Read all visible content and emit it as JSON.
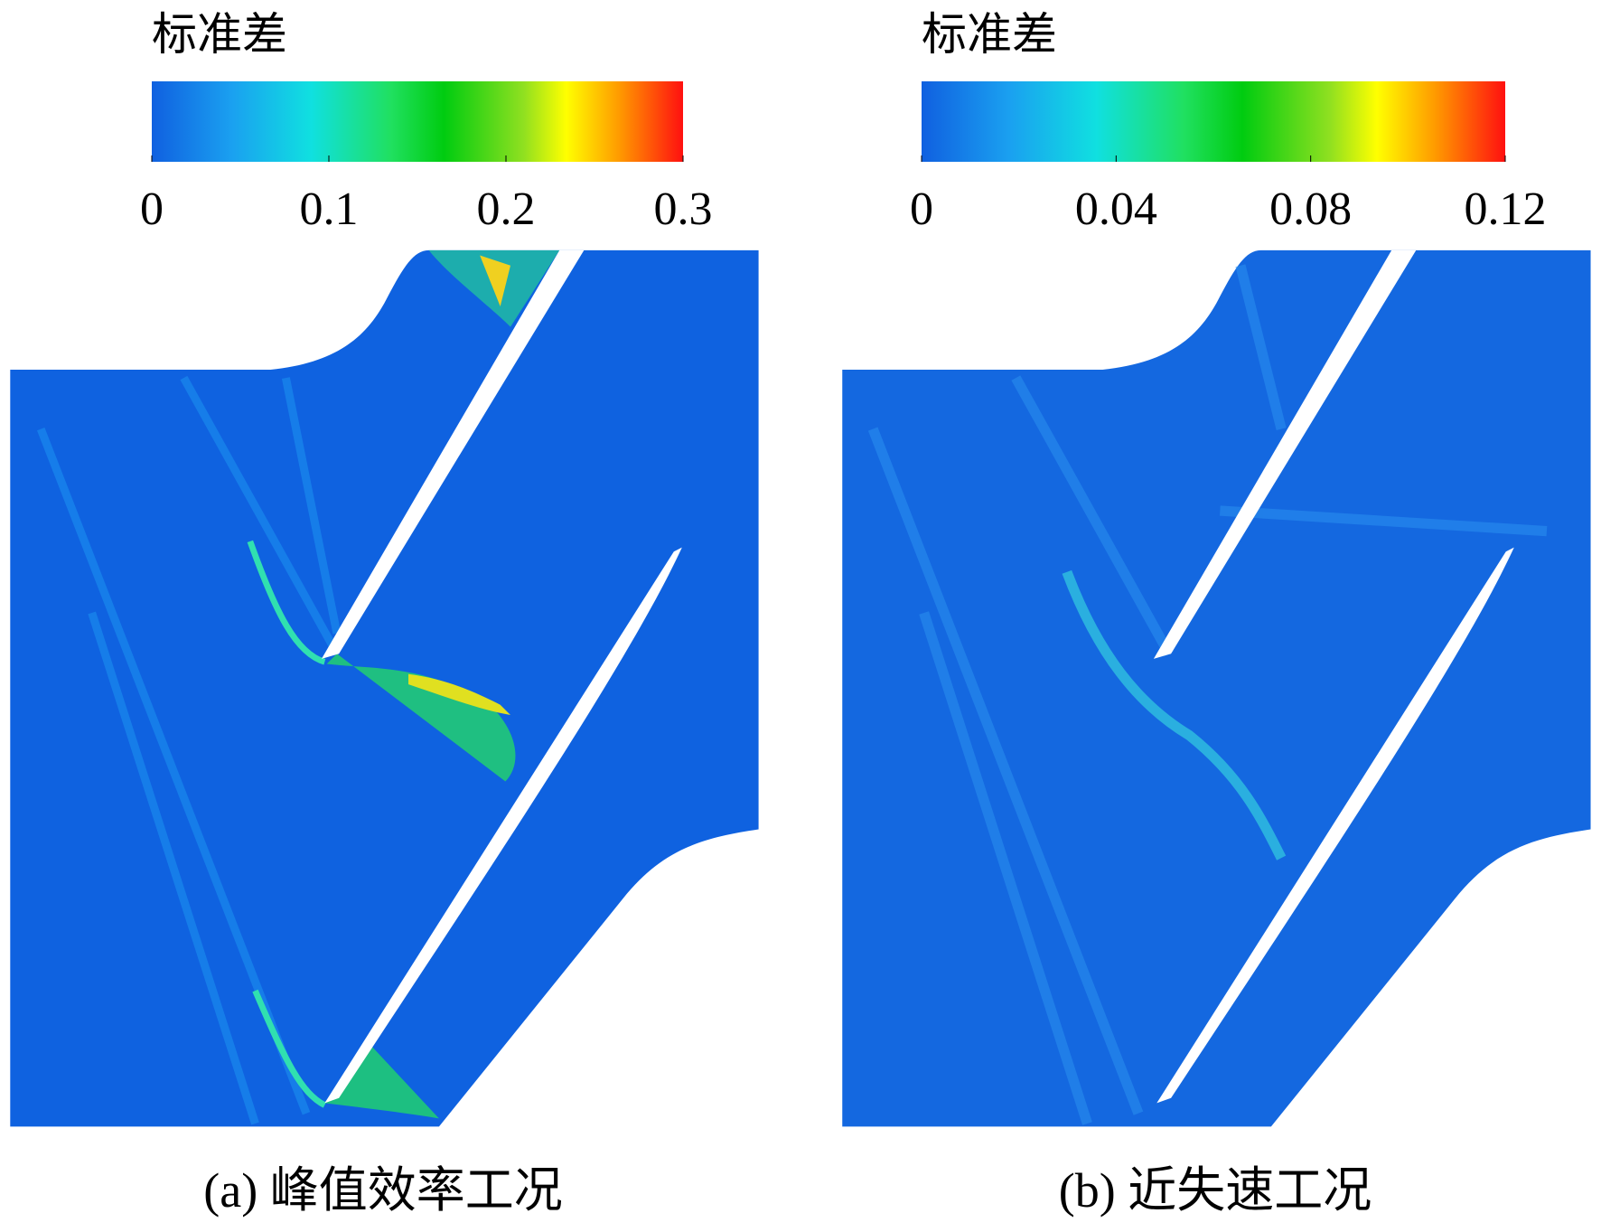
{
  "panels": [
    {
      "colorbar": {
        "title": "标准差",
        "range": [
          0,
          0.3
        ],
        "ticks": [
          0,
          0.1,
          0.2,
          0.3
        ]
      },
      "caption": "(a) 峰值效率工况"
    },
    {
      "colorbar": {
        "title": "标准差",
        "range": [
          0,
          0.12
        ],
        "ticks": [
          0,
          0.04,
          0.08,
          0.12
        ]
      },
      "caption": "(b) 近失速工况"
    }
  ]
}
